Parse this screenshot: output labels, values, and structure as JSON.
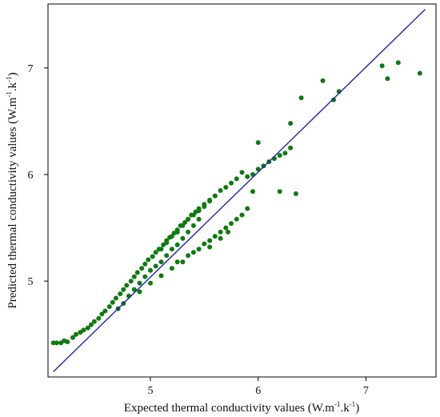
{
  "chart_data": {
    "type": "scatter",
    "title": "",
    "xlabel": {
      "main": "Expected thermal conductivity values (W.m",
      "sup1": "-1",
      "mid": ".k",
      "sup2": "-1",
      "end": ")"
    },
    "ylabel": {
      "main": "Predicted thermal conductivity values (W.m",
      "sup1": "-1",
      "mid": ".k",
      "sup2": "-1",
      "end": ")"
    },
    "xlim": [
      4.05,
      7.65
    ],
    "ylim": [
      4.1,
      7.6
    ],
    "x_ticks": [
      5,
      6,
      7
    ],
    "y_ticks": [
      5,
      6,
      7
    ],
    "x_tick_labels": [
      "5",
      "6",
      "7"
    ],
    "y_tick_labels": [
      "5",
      "6",
      "7"
    ],
    "grid": false,
    "colors": {
      "points": "#0f7a0f",
      "fit_line": "#2222aa"
    },
    "fit_line": {
      "x": [
        4.1,
        7.55
      ],
      "y": [
        4.15,
        7.55
      ]
    },
    "points": [
      [
        4.1,
        4.42
      ],
      [
        4.13,
        4.42
      ],
      [
        4.17,
        4.42
      ],
      [
        4.2,
        4.44
      ],
      [
        4.23,
        4.43
      ],
      [
        4.28,
        4.47
      ],
      [
        4.31,
        4.5
      ],
      [
        4.35,
        4.52
      ],
      [
        4.38,
        4.54
      ],
      [
        4.42,
        4.56
      ],
      [
        4.45,
        4.59
      ],
      [
        4.48,
        4.62
      ],
      [
        4.52,
        4.65
      ],
      [
        4.55,
        4.69
      ],
      [
        4.58,
        4.72
      ],
      [
        4.62,
        4.76
      ],
      [
        4.65,
        4.8
      ],
      [
        4.68,
        4.84
      ],
      [
        4.72,
        4.88
      ],
      [
        4.75,
        4.92
      ],
      [
        4.78,
        4.96
      ],
      [
        4.82,
        5.0
      ],
      [
        4.85,
        5.04
      ],
      [
        4.88,
        5.08
      ],
      [
        4.92,
        5.12
      ],
      [
        4.95,
        5.16
      ],
      [
        4.98,
        5.2
      ],
      [
        5.02,
        5.23
      ],
      [
        5.05,
        5.27
      ],
      [
        5.08,
        5.3
      ],
      [
        5.12,
        5.34
      ],
      [
        5.15,
        5.38
      ],
      [
        5.18,
        5.41
      ],
      [
        5.22,
        5.45
      ],
      [
        5.25,
        5.48
      ],
      [
        5.28,
        5.52
      ],
      [
        5.32,
        5.55
      ],
      [
        5.35,
        5.58
      ],
      [
        5.38,
        5.62
      ],
      [
        5.42,
        5.65
      ],
      [
        5.45,
        5.68
      ],
      [
        5.5,
        5.72
      ],
      [
        5.55,
        5.76
      ],
      [
        5.6,
        5.8
      ],
      [
        4.7,
        4.74
      ],
      [
        4.75,
        4.79
      ],
      [
        4.8,
        4.86
      ],
      [
        4.85,
        4.92
      ],
      [
        4.9,
        4.98
      ],
      [
        4.95,
        5.04
      ],
      [
        5.0,
        5.1
      ],
      [
        5.05,
        5.14
      ],
      [
        5.1,
        5.18
      ],
      [
        5.15,
        5.24
      ],
      [
        5.2,
        5.3
      ],
      [
        5.25,
        5.34
      ],
      [
        5.3,
        5.4
      ],
      [
        5.35,
        5.46
      ],
      [
        5.4,
        5.52
      ],
      [
        5.45,
        5.58
      ],
      [
        4.9,
        4.9
      ],
      [
        5.0,
        4.98
      ],
      [
        5.1,
        5.05
      ],
      [
        5.2,
        5.12
      ],
      [
        5.3,
        5.18
      ],
      [
        5.4,
        5.27
      ],
      [
        5.5,
        5.35
      ],
      [
        5.55,
        5.38
      ],
      [
        5.6,
        5.42
      ],
      [
        5.65,
        5.46
      ],
      [
        5.7,
        5.5
      ],
      [
        5.75,
        5.54
      ],
      [
        5.8,
        5.58
      ],
      [
        5.85,
        5.62
      ],
      [
        5.9,
        5.68
      ],
      [
        5.25,
        5.18
      ],
      [
        5.35,
        5.24
      ],
      [
        5.45,
        5.3
      ],
      [
        5.55,
        5.32
      ],
      [
        5.65,
        5.4
      ],
      [
        5.72,
        5.46
      ],
      [
        5.1,
        5.3
      ],
      [
        5.15,
        5.36
      ],
      [
        5.2,
        5.42
      ],
      [
        5.25,
        5.46
      ],
      [
        5.3,
        5.52
      ],
      [
        5.35,
        5.58
      ],
      [
        5.4,
        5.62
      ],
      [
        5.45,
        5.66
      ],
      [
        5.5,
        5.7
      ],
      [
        5.55,
        5.75
      ],
      [
        5.6,
        5.8
      ],
      [
        5.65,
        5.85
      ],
      [
        5.7,
        5.88
      ],
      [
        5.75,
        5.92
      ],
      [
        5.8,
        5.96
      ],
      [
        5.85,
        6.02
      ],
      [
        5.9,
        5.98
      ],
      [
        5.95,
        6.0
      ],
      [
        6.0,
        6.05
      ],
      [
        6.05,
        6.08
      ],
      [
        6.1,
        6.12
      ],
      [
        6.15,
        6.15
      ],
      [
        6.2,
        6.18
      ],
      [
        6.25,
        6.2
      ],
      [
        6.3,
        6.25
      ],
      [
        6.2,
        5.84
      ],
      [
        6.35,
        5.82
      ],
      [
        5.95,
        5.84
      ],
      [
        6.3,
        6.48
      ],
      [
        6.4,
        6.72
      ],
      [
        6.6,
        6.88
      ],
      [
        6.75,
        6.78
      ],
      [
        7.15,
        7.02
      ],
      [
        7.2,
        6.9
      ],
      [
        7.3,
        7.05
      ],
      [
        7.5,
        6.95
      ],
      [
        6.7,
        6.7
      ],
      [
        6.0,
        6.3
      ]
    ]
  }
}
